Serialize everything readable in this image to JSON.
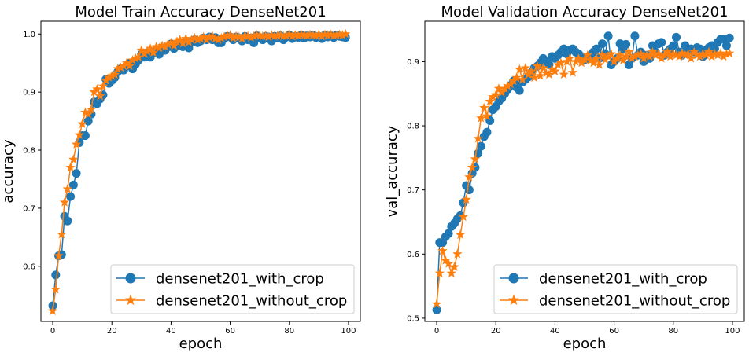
{
  "chart_data": [
    {
      "type": "line",
      "title": "Model Train Accuracy DenseNet201",
      "xlabel": "epoch",
      "ylabel": "accuracy",
      "xlim": [
        -4,
        104
      ],
      "ylim": [
        0.505,
        1.022
      ],
      "xticks": [
        0,
        20,
        40,
        60,
        80,
        100
      ],
      "yticks": [
        0.6,
        0.7,
        0.8,
        0.9,
        1.0
      ],
      "xtick_labels": [
        "0",
        "20",
        "40",
        "60",
        "80",
        "100"
      ],
      "ytick_labels": [
        "0.6",
        "0.7",
        "0.8",
        "0.9",
        "1.0"
      ],
      "legend_position": "lower-right",
      "x": [
        0,
        1,
        2,
        3,
        4,
        5,
        6,
        7,
        8,
        9,
        10,
        11,
        12,
        13,
        14,
        15,
        16,
        17,
        18,
        19,
        20,
        21,
        22,
        23,
        24,
        25,
        26,
        27,
        28,
        29,
        30,
        31,
        32,
        33,
        34,
        35,
        36,
        37,
        38,
        39,
        40,
        41,
        42,
        43,
        44,
        45,
        46,
        47,
        48,
        49,
        50,
        51,
        52,
        53,
        54,
        55,
        56,
        57,
        58,
        59,
        60,
        61,
        62,
        63,
        64,
        65,
        66,
        67,
        68,
        69,
        70,
        71,
        72,
        73,
        74,
        75,
        76,
        77,
        78,
        79,
        80,
        81,
        82,
        83,
        84,
        85,
        86,
        87,
        88,
        89,
        90,
        91,
        92,
        93,
        94,
        95,
        96,
        97,
        98,
        99
      ],
      "series": [
        {
          "name": "densenet201_with_crop",
          "color": "#1f77b4",
          "marker": "circle",
          "values": [
            0.532,
            0.585,
            0.618,
            0.62,
            0.686,
            0.678,
            0.72,
            0.74,
            0.76,
            0.813,
            0.825,
            0.825,
            0.85,
            0.862,
            0.883,
            0.88,
            0.888,
            0.895,
            0.922,
            0.915,
            0.92,
            0.925,
            0.935,
            0.94,
            0.938,
            0.945,
            0.95,
            0.94,
            0.948,
            0.955,
            0.965,
            0.96,
            0.968,
            0.96,
            0.97,
            0.968,
            0.965,
            0.974,
            0.972,
            0.978,
            0.983,
            0.975,
            0.98,
            0.985,
            0.978,
            0.985,
            0.976,
            0.987,
            0.99,
            0.985,
            0.988,
            0.993,
            0.99,
            0.995,
            0.99,
            0.994,
            0.985,
            0.985,
            0.992,
            0.996,
            0.995,
            0.99,
            0.995,
            0.993,
            0.988,
            0.996,
            0.99,
            0.993,
            0.985,
            0.997,
            0.994,
            0.99,
            0.996,
            0.995,
            0.988,
            0.996,
            0.993,
            0.997,
            0.99,
            0.995,
            0.998,
            0.992,
            0.996,
            0.994,
            0.998,
            0.993,
            0.997,
            0.995,
            0.998,
            0.994,
            0.996,
            0.992,
            0.998,
            0.995,
            0.997,
            0.994,
            0.998,
            0.996,
            0.995,
            0.994
          ]
        },
        {
          "name": "densenet201_without_crop",
          "color": "#ff7f0e",
          "marker": "star",
          "values": [
            0.523,
            0.56,
            0.618,
            0.655,
            0.71,
            0.733,
            0.77,
            0.784,
            0.81,
            0.826,
            0.845,
            0.865,
            0.862,
            0.87,
            0.9,
            0.905,
            0.893,
            0.91,
            0.92,
            0.925,
            0.928,
            0.93,
            0.94,
            0.942,
            0.945,
            0.95,
            0.945,
            0.955,
            0.958,
            0.96,
            0.972,
            0.966,
            0.97,
            0.975,
            0.968,
            0.978,
            0.976,
            0.98,
            0.978,
            0.982,
            0.985,
            0.98,
            0.987,
            0.99,
            0.984,
            0.992,
            0.986,
            0.99,
            0.993,
            0.99,
            0.992,
            0.995,
            0.99,
            0.994,
            0.996,
            0.992,
            0.99,
            0.993,
            0.995,
            0.997,
            0.998,
            0.993,
            0.996,
            0.995,
            0.992,
            0.997,
            0.996,
            0.994,
            0.996,
            0.998,
            0.997,
            0.996,
            0.997,
            0.995,
            0.998,
            0.996,
            0.997,
            0.998,
            0.996,
            0.997,
            0.999,
            0.996,
            0.998,
            0.997,
            0.999,
            0.998,
            0.997,
            0.999,
            0.998,
            0.997,
            0.999,
            0.996,
            0.999,
            0.998,
            0.999,
            0.997,
            0.998,
            0.999,
            0.998,
            1.0
          ]
        }
      ]
    },
    {
      "type": "line",
      "title": "Model Validation Accuracy DenseNet201",
      "xlabel": "epoch",
      "ylabel": "val_accuracy",
      "xlim": [
        -4,
        104
      ],
      "ylim": [
        0.495,
        0.963
      ],
      "xticks": [
        0,
        20,
        40,
        60,
        80,
        100
      ],
      "yticks": [
        0.5,
        0.6,
        0.7,
        0.8,
        0.9
      ],
      "xtick_labels": [
        "0",
        "20",
        "40",
        "60",
        "80",
        "100"
      ],
      "ytick_labels": [
        "0.5",
        "0.6",
        "0.7",
        "0.8",
        "0.9"
      ],
      "legend_position": "lower-right",
      "x": [
        0,
        1,
        2,
        3,
        4,
        5,
        6,
        7,
        8,
        9,
        10,
        11,
        12,
        13,
        14,
        15,
        16,
        17,
        18,
        19,
        20,
        21,
        22,
        23,
        24,
        25,
        26,
        27,
        28,
        29,
        30,
        31,
        32,
        33,
        34,
        35,
        36,
        37,
        38,
        39,
        40,
        41,
        42,
        43,
        44,
        45,
        46,
        47,
        48,
        49,
        50,
        51,
        52,
        53,
        54,
        55,
        56,
        57,
        58,
        59,
        60,
        61,
        62,
        63,
        64,
        65,
        66,
        67,
        68,
        69,
        70,
        71,
        72,
        73,
        74,
        75,
        76,
        77,
        78,
        79,
        80,
        81,
        82,
        83,
        84,
        85,
        86,
        87,
        88,
        89,
        90,
        91,
        92,
        93,
        94,
        95,
        96,
        97,
        98,
        99
      ],
      "series": [
        {
          "name": "densenet201_with_crop",
          "color": "#1f77b4",
          "marker": "circle",
          "values": [
            0.513,
            0.618,
            0.618,
            0.627,
            0.632,
            0.643,
            0.648,
            0.655,
            0.66,
            0.68,
            0.707,
            0.7,
            0.726,
            0.735,
            0.757,
            0.768,
            0.783,
            0.79,
            0.808,
            0.825,
            0.83,
            0.838,
            0.843,
            0.85,
            0.857,
            0.863,
            0.87,
            0.86,
            0.855,
            0.868,
            0.872,
            0.876,
            0.883,
            0.89,
            0.893,
            0.898,
            0.905,
            0.9,
            0.895,
            0.908,
            0.905,
            0.91,
            0.915,
            0.92,
            0.912,
            0.918,
            0.92,
            0.915,
            0.912,
            0.908,
            0.903,
            0.905,
            0.91,
            0.915,
            0.92,
            0.905,
            0.928,
            0.912,
            0.94,
            0.895,
            0.9,
            0.905,
            0.928,
            0.92,
            0.927,
            0.895,
            0.905,
            0.94,
            0.91,
            0.915,
            0.9,
            0.91,
            0.905,
            0.925,
            0.915,
            0.928,
            0.93,
            0.91,
            0.915,
            0.92,
            0.925,
            0.938,
            0.915,
            0.91,
            0.925,
            0.918,
            0.92,
            0.915,
            0.922,
            0.92,
            0.908,
            0.918,
            0.922,
            0.925,
            0.92,
            0.93,
            0.935,
            0.935,
            0.925,
            0.937
          ]
        },
        {
          "name": "densenet201_without_crop",
          "color": "#ff7f0e",
          "marker": "star",
          "values": [
            0.522,
            0.57,
            0.605,
            0.59,
            0.585,
            0.57,
            0.58,
            0.6,
            0.63,
            0.658,
            0.685,
            0.72,
            0.735,
            0.748,
            0.78,
            0.812,
            0.828,
            0.815,
            0.838,
            0.845,
            0.848,
            0.858,
            0.852,
            0.858,
            0.862,
            0.865,
            0.87,
            0.875,
            0.888,
            0.872,
            0.89,
            0.88,
            0.885,
            0.875,
            0.893,
            0.878,
            0.89,
            0.882,
            0.88,
            0.888,
            0.885,
            0.895,
            0.898,
            0.88,
            0.9,
            0.905,
            0.883,
            0.9,
            0.905,
            0.898,
            0.903,
            0.91,
            0.902,
            0.898,
            0.905,
            0.895,
            0.91,
            0.903,
            0.908,
            0.912,
            0.9,
            0.905,
            0.91,
            0.902,
            0.908,
            0.915,
            0.905,
            0.908,
            0.91,
            0.912,
            0.905,
            0.91,
            0.908,
            0.915,
            0.91,
            0.912,
            0.905,
            0.91,
            0.915,
            0.908,
            0.912,
            0.91,
            0.908,
            0.913,
            0.91,
            0.912,
            0.905,
            0.915,
            0.91,
            0.908,
            0.912,
            0.91,
            0.915,
            0.908,
            0.912,
            0.91,
            0.913,
            0.908,
            0.912,
            0.913
          ]
        }
      ]
    }
  ]
}
